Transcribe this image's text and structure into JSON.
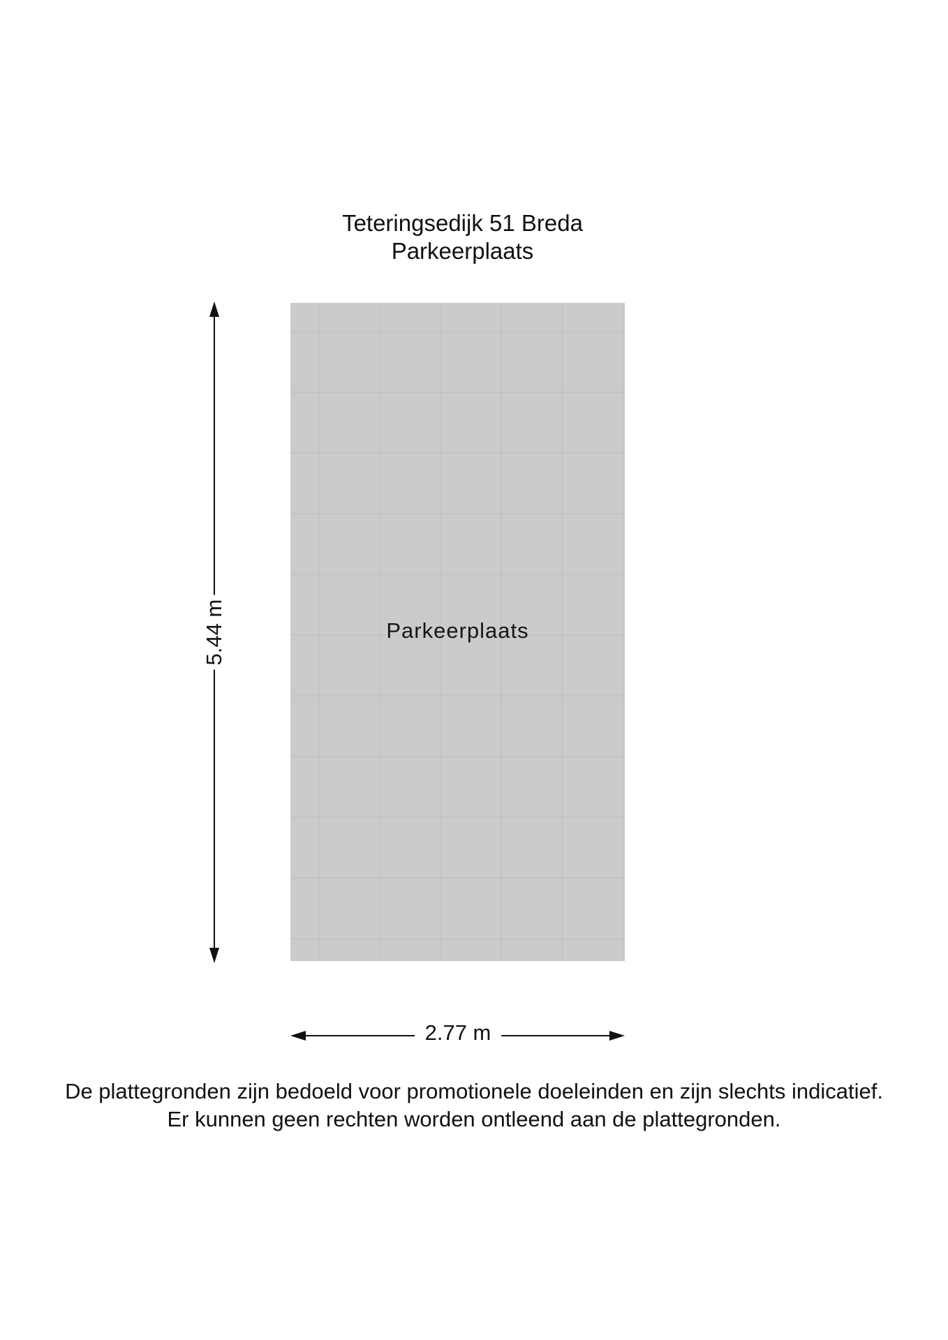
{
  "title": {
    "address": "Teteringsedijk 51 Breda",
    "floor": "Parkeerplaats"
  },
  "room": {
    "label": "Parkeerplaats",
    "fill_color": "#cbcbcb"
  },
  "dimensions": {
    "height": "5.44 m",
    "width": "2.77 m"
  },
  "disclaimer": {
    "line1": "De plattegronden zijn bedoeld voor promotionele doeleinden en zijn slechts indicatief.",
    "line2": "Er kunnen geen rechten worden ontleend aan de plattegronden."
  }
}
